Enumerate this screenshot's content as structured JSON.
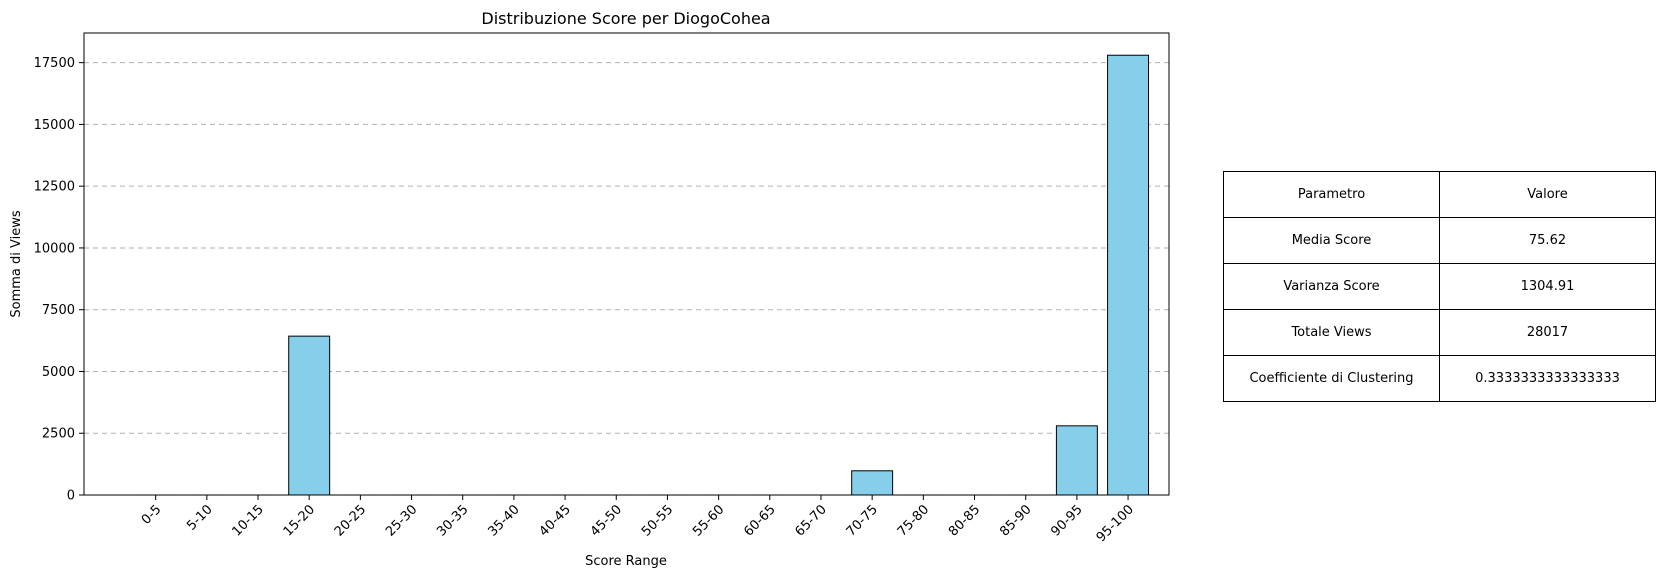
{
  "chart_data": {
    "type": "bar",
    "title": "Distribuzione Score per DiogoCohea",
    "xlabel": "Score Range",
    "ylabel": "Somma di Views",
    "categories": [
      "0-5",
      "5-10",
      "10-15",
      "15-20",
      "20-25",
      "25-30",
      "30-35",
      "35-40",
      "40-45",
      "45-50",
      "50-55",
      "55-60",
      "60-65",
      "65-70",
      "70-75",
      "75-80",
      "80-85",
      "85-90",
      "90-95",
      "95-100"
    ],
    "values": [
      0,
      0,
      0,
      6430,
      0,
      0,
      0,
      0,
      0,
      0,
      0,
      0,
      0,
      0,
      980,
      0,
      0,
      0,
      2800,
      17800
    ],
    "ylim": [
      0,
      18700
    ],
    "yticks": [
      0,
      2500,
      5000,
      7500,
      10000,
      12500,
      15000,
      17500
    ],
    "grid": "y-dashed",
    "bar_color": "#87ceeb",
    "edge_color": "#000000"
  },
  "table": {
    "header": {
      "param": "Parametro",
      "value": "Valore"
    },
    "rows": [
      {
        "param": "Media Score",
        "value": "75.62"
      },
      {
        "param": "Varianza Score",
        "value": "1304.91"
      },
      {
        "param": "Totale Views",
        "value": "28017"
      },
      {
        "param": "Coefficiente di Clustering",
        "value": "0.3333333333333333"
      }
    ]
  }
}
